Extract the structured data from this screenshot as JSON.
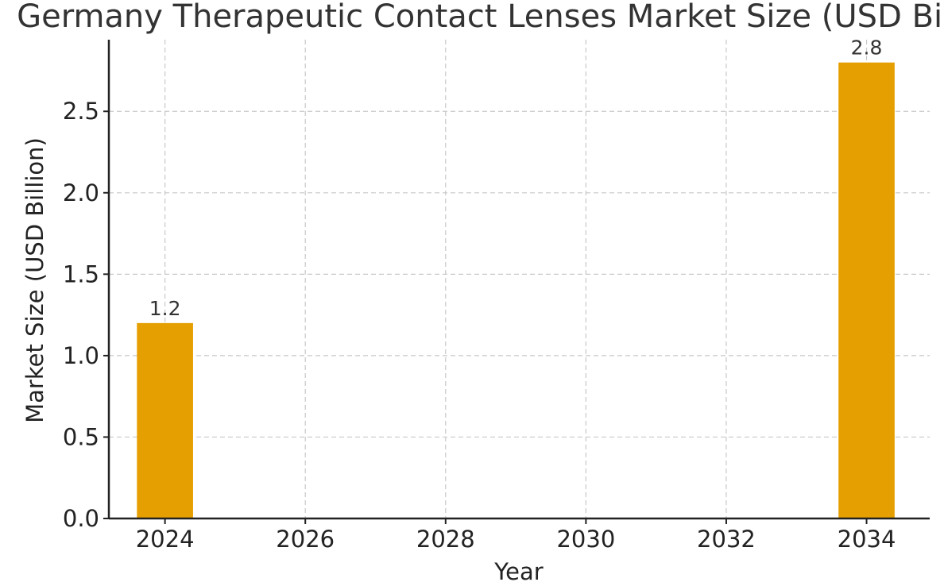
{
  "chart_data": {
    "type": "bar",
    "title": "Germany Therapeutic Contact Lenses Market Size (USD Billion)",
    "xlabel": "Year",
    "ylabel": "Market Size (USD Billion)",
    "x": [
      2024,
      2034
    ],
    "values": [
      1.2,
      2.8
    ],
    "data_labels": [
      "1.2",
      "2.8"
    ],
    "xlim": [
      2023.2,
      2034.9
    ],
    "ylim": [
      0,
      2.94
    ],
    "x_ticks": [
      2024,
      2026,
      2028,
      2030,
      2032,
      2034
    ],
    "x_tick_labels": [
      "2024",
      "2026",
      "2028",
      "2030",
      "2032",
      "2034"
    ],
    "y_ticks": [
      0.0,
      0.5,
      1.0,
      1.5,
      2.0,
      2.5
    ],
    "y_tick_labels": [
      "0.0",
      "0.5",
      "1.0",
      "1.5",
      "2.0",
      "2.5"
    ],
    "bar_color": "#E69F00",
    "grid": true,
    "legend": "none"
  }
}
